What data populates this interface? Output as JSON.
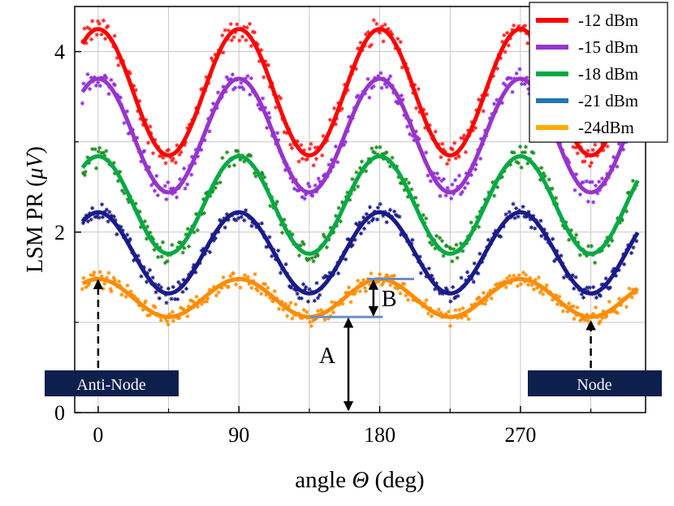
{
  "chart_data": {
    "type": "line",
    "title": "",
    "xlabel_text": "angle ",
    "xlabel_symbol": "Θ",
    "xlabel_unit": " (deg)",
    "ylabel_text": "LSM PR (",
    "ylabel_symbol": "μV",
    "ylabel_close": ")",
    "xlim": [
      -15,
      350
    ],
    "ylim": [
      0,
      4.5
    ],
    "xticks": [
      0,
      90,
      180,
      270
    ],
    "xtick_labels": [
      "0",
      "90",
      "180",
      "270"
    ],
    "yticks": [
      0,
      2,
      4
    ],
    "ytick_labels": [
      "0",
      "2",
      "4"
    ],
    "grid": true,
    "legend_position": "top-right",
    "period_deg": 90,
    "antinode_angle": 0,
    "series": [
      {
        "name": "-12 dBm",
        "color": "#ff0000",
        "marker_color": "#ff2020",
        "mean": 3.55,
        "amplitude": 0.7
      },
      {
        "name": "-15 dBm",
        "color": "#9933cc",
        "marker_color": "#8a2be2",
        "mean": 3.07,
        "amplitude": 0.63
      },
      {
        "name": "-18 dBm",
        "color": "#00aa44",
        "marker_color": "#1e8a1e",
        "mean": 2.3,
        "amplitude": 0.54
      },
      {
        "name": "-21 dBm",
        "color": "#1f77b4",
        "line_color": "#1a1a8a",
        "marker_color": "#1a1a8a",
        "mean": 1.77,
        "amplitude": 0.45
      },
      {
        "name": "-24dBm",
        "color": "#ffaa00",
        "line_color": "#ff8c00",
        "marker_color": "#ff8c00",
        "mean": 1.27,
        "amplitude": 0.21
      }
    ],
    "annotations": {
      "antinode_label": "Anti-Node",
      "antinode_angle": 0,
      "antinode_value": 1.45,
      "node_label": "Node",
      "node_angle": 315,
      "node_value": 1.05,
      "a_label": "A",
      "a_angle": 160,
      "a_value_top": 1.06,
      "b_label": "B",
      "b_angle": 180,
      "b_value_low": 1.06,
      "b_value_high": 1.48,
      "b_line_x_start": 135,
      "b_line_x_end": 200,
      "b_line_low_x_start": 135,
      "b_line_low_x_end": 182,
      "b_line_high_x_start": 172,
      "b_line_high_x_end": 202,
      "label_box_color": "#0c1f4d"
    }
  }
}
